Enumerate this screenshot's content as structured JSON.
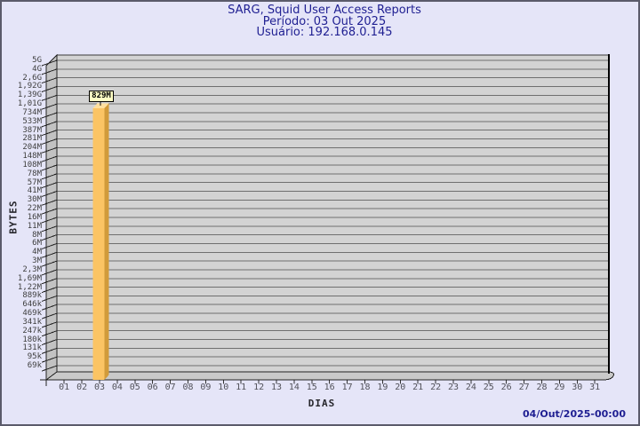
{
  "title": {
    "line1": "SARG, Squid User Access Reports",
    "line2": "Período: 03 Out 2025",
    "line3": "Usuário: 192.168.0.145"
  },
  "footer": {
    "generated_timestamp": "04/Out/2025-00:00"
  },
  "chart_data": {
    "type": "bar",
    "title": "SARG, Squid User Access Reports",
    "period_line": "Período: 03 Out 2025",
    "user_line": "Usuário: 192.168.0.145",
    "xlabel": "DIAS",
    "ylabel": "BYTES",
    "y_scale": "log",
    "grid": true,
    "y_tick_labels": [
      "5G",
      "4G",
      "2,6G",
      "1,92G",
      "1,39G",
      "1,01G",
      "734M",
      "533M",
      "387M",
      "281M",
      "204M",
      "148M",
      "108M",
      "78M",
      "57M",
      "41M",
      "30M",
      "22M",
      "16M",
      "11M",
      "8M",
      "6M",
      "4M",
      "3M",
      "2,3M",
      "1,69M",
      "1,22M",
      "889k",
      "646k",
      "469k",
      "341k",
      "247k",
      "180k",
      "131k",
      "95k",
      "69k"
    ],
    "x_categories": [
      "01",
      "02",
      "03",
      "04",
      "05",
      "06",
      "07",
      "08",
      "09",
      "10",
      "11",
      "12",
      "13",
      "14",
      "15",
      "16",
      "17",
      "18",
      "19",
      "20",
      "21",
      "22",
      "23",
      "24",
      "25",
      "26",
      "27",
      "28",
      "29",
      "30",
      "31"
    ],
    "bars": [
      {
        "x": "03",
        "y_label": "829M"
      }
    ],
    "colors": {
      "background": "#E5E5F8",
      "title_text": "#1F1F92",
      "back_wall": "#D3D3D3",
      "grid_line": "#6F6F6F",
      "side_wall": "#C2C2C2",
      "floor": "#C9C9C9",
      "bar_face": "#FBC464",
      "bar_side": "#D19B3B",
      "bar_top": "#FFDF9E",
      "bar_label_bg": "#FFFFC4",
      "tick_text": "#3E3E3E",
      "timestamp_text": "#1F1F92"
    }
  }
}
